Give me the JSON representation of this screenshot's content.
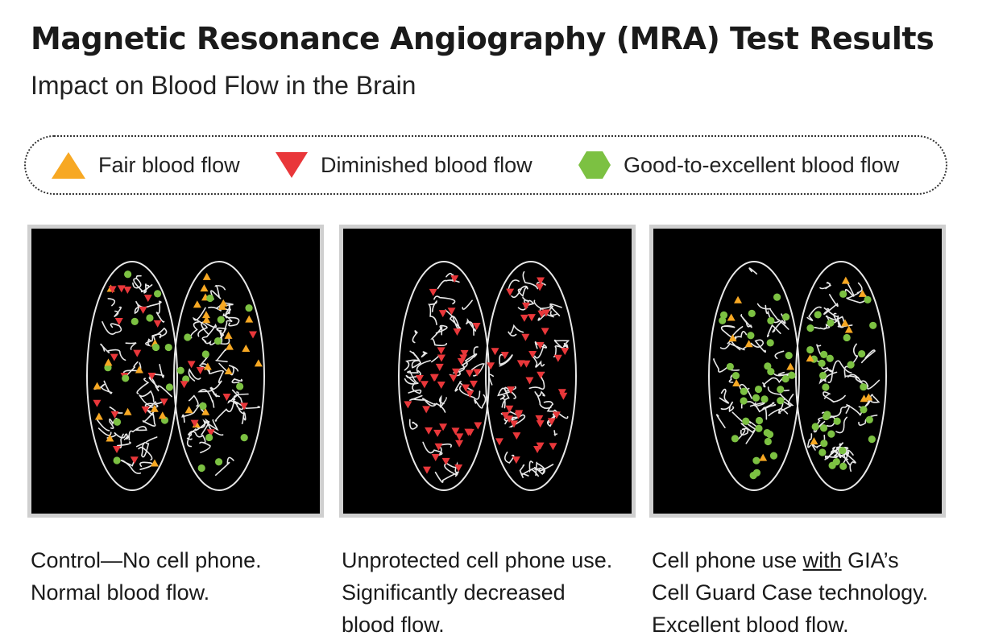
{
  "header": {
    "title": "Magnetic Resonance Angiography (MRA) Test Results",
    "subtitle": "Impact on Blood Flow in the Brain"
  },
  "legend": [
    {
      "label": "Fair blood flow",
      "marker": "triangle-up",
      "color": "#f7a823"
    },
    {
      "label": "Diminished blood flow",
      "marker": "triangle-down",
      "color": "#e9373a"
    },
    {
      "label": "Good-to-excellent blood flow",
      "marker": "hexagon",
      "color": "#7cc142"
    }
  ],
  "panels": [
    {
      "id": "control",
      "caption_lines": [
        "Control—No cell phone.",
        "Normal blood flow."
      ],
      "mix": {
        "fair": 0.3,
        "diminished": 0.32,
        "good": 0.38
      }
    },
    {
      "id": "unprotected",
      "caption_lines": [
        "Unprotected cell phone use.",
        "Significantly decreased",
        "blood flow."
      ],
      "mix": {
        "fair": 0.0,
        "diminished": 0.97,
        "good": 0.03
      }
    },
    {
      "id": "gia",
      "caption_lines_rich": [
        [
          {
            "t": "Cell phone use "
          },
          {
            "t": "with",
            "u": true
          },
          {
            "t": " GIA’s"
          }
        ],
        [
          {
            "t": "Cell Guard Case technology."
          }
        ],
        [
          {
            "t": "Excellent blood flow."
          }
        ]
      ],
      "mix": {
        "fair": 0.2,
        "diminished": 0.0,
        "good": 0.8
      }
    }
  ],
  "colors": {
    "fair": "#f7a823",
    "diminished": "#e9373a",
    "good": "#7cc142",
    "vessel": "#e8e8e8"
  }
}
